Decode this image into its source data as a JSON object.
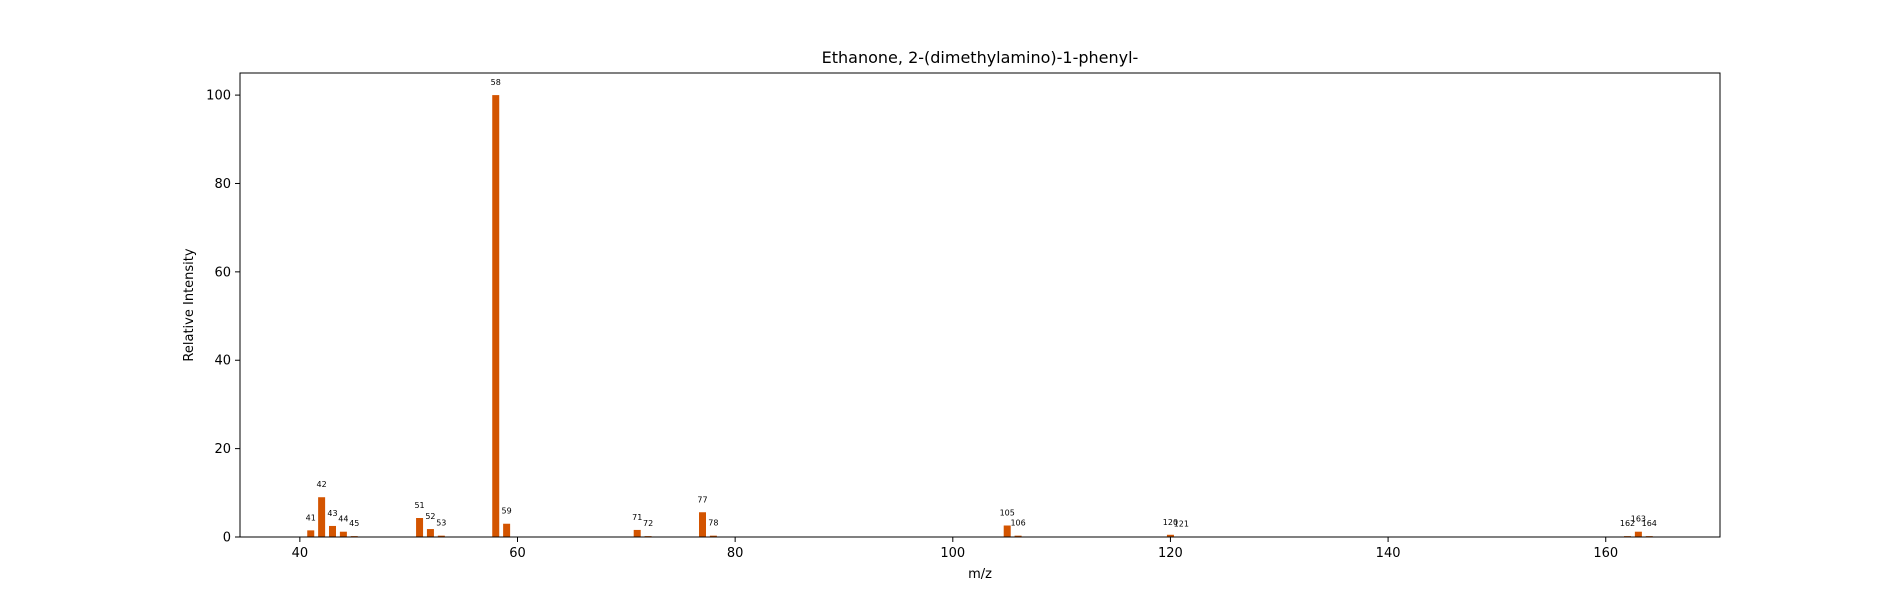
{
  "chart_data": {
    "type": "bar",
    "title": "Ethanone, 2-(dimethylamino)-1-phenyl-",
    "xlabel": "m/z",
    "ylabel": "Relative Intensity",
    "xlim": [
      34.5,
      170.5
    ],
    "ylim": [
      0,
      105
    ],
    "xticks": [
      40,
      60,
      80,
      100,
      120,
      140,
      160
    ],
    "yticks": [
      0,
      20,
      40,
      60,
      80,
      100
    ],
    "bar_color": "#d35400",
    "grid": false,
    "peaks": [
      {
        "mz": 41,
        "intensity": 1.5
      },
      {
        "mz": 42,
        "intensity": 9.0
      },
      {
        "mz": 43,
        "intensity": 2.5
      },
      {
        "mz": 44,
        "intensity": 1.2
      },
      {
        "mz": 45,
        "intensity": 0.2
      },
      {
        "mz": 51,
        "intensity": 4.3
      },
      {
        "mz": 52,
        "intensity": 1.8
      },
      {
        "mz": 53,
        "intensity": 0.3
      },
      {
        "mz": 58,
        "intensity": 100
      },
      {
        "mz": 59,
        "intensity": 3.0
      },
      {
        "mz": 71,
        "intensity": 1.6
      },
      {
        "mz": 72,
        "intensity": 0.2
      },
      {
        "mz": 77,
        "intensity": 5.6
      },
      {
        "mz": 78,
        "intensity": 0.3
      },
      {
        "mz": 105,
        "intensity": 2.6
      },
      {
        "mz": 106,
        "intensity": 0.3
      },
      {
        "mz": 120,
        "intensity": 0.5
      },
      {
        "mz": 121,
        "intensity": 0.1
      },
      {
        "mz": 162,
        "intensity": 0.2
      },
      {
        "mz": 163,
        "intensity": 1.2
      },
      {
        "mz": 164,
        "intensity": 0.2
      }
    ]
  }
}
